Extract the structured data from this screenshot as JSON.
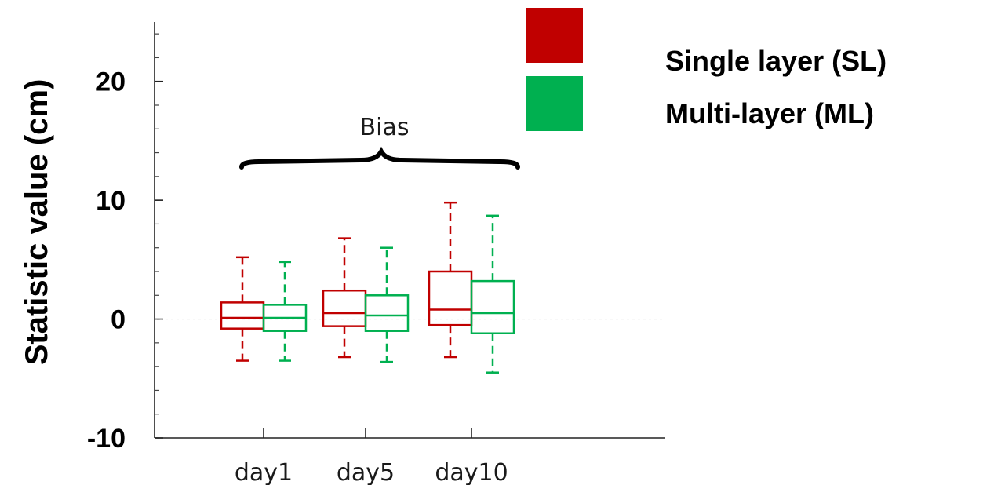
{
  "chart_data": {
    "type": "box",
    "title": "",
    "xlabel": "",
    "ylabel": "Statistic value (cm)",
    "ylim": [
      -10,
      25
    ],
    "yticks": [
      -10,
      0,
      10,
      20
    ],
    "ytick_labels": [
      "-10",
      "0",
      "10",
      "20"
    ],
    "categories": [
      "day1",
      "day5",
      "day10"
    ],
    "annotation": "Bias",
    "grid": false,
    "zero_line": true,
    "legend_position": "top-right",
    "series": [
      {
        "name": "Single layer (SL)",
        "color": "#c00000",
        "boxes": [
          {
            "whisker_low": -3.5,
            "q1": -0.8,
            "median": 0.1,
            "q3": 1.4,
            "whisker_high": 5.2
          },
          {
            "whisker_low": -3.2,
            "q1": -0.6,
            "median": 0.5,
            "q3": 2.4,
            "whisker_high": 6.8
          },
          {
            "whisker_low": -3.2,
            "q1": -0.5,
            "median": 0.8,
            "q3": 4.0,
            "whisker_high": 9.8
          }
        ]
      },
      {
        "name": "Multi-layer (ML)",
        "color": "#00b050",
        "boxes": [
          {
            "whisker_low": -3.5,
            "q1": -1.0,
            "median": 0.1,
            "q3": 1.2,
            "whisker_high": 4.8
          },
          {
            "whisker_low": -3.6,
            "q1": -1.0,
            "median": 0.3,
            "q3": 2.0,
            "whisker_high": 6.0
          },
          {
            "whisker_low": -4.5,
            "q1": -1.2,
            "median": 0.5,
            "q3": 3.2,
            "whisker_high": 8.7
          }
        ]
      }
    ]
  }
}
